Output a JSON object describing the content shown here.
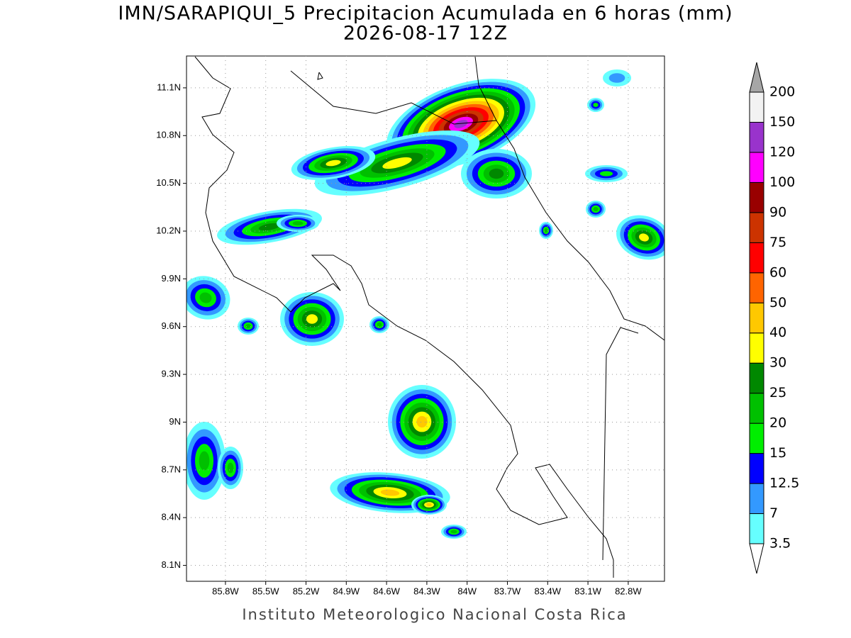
{
  "chart_data": {
    "type": "map",
    "title": "IMN/SARAPIQUI_5 Precipitacion Acumulada en 6 horas (mm)",
    "subtitle": "2026-08-17 12Z",
    "credit": "Instituto Meteorologico Nacional Costa Rica",
    "xlim": [
      -86.09,
      -82.53
    ],
    "ylim": [
      8.0,
      11.3
    ],
    "xticks": [
      {
        "value": -85.8,
        "label": "85.8W"
      },
      {
        "value": -85.5,
        "label": "85.5W"
      },
      {
        "value": -85.2,
        "label": "85.2W"
      },
      {
        "value": -84.9,
        "label": "84.9W"
      },
      {
        "value": -84.6,
        "label": "84.6W"
      },
      {
        "value": -84.3,
        "label": "84.3W"
      },
      {
        "value": -84.0,
        "label": "84W"
      },
      {
        "value": -83.7,
        "label": "83.7W"
      },
      {
        "value": -83.4,
        "label": "83.4W"
      },
      {
        "value": -83.1,
        "label": "83.1W"
      },
      {
        "value": -82.8,
        "label": "82.8W"
      }
    ],
    "yticks": [
      {
        "value": 8.1,
        "label": "8.1N"
      },
      {
        "value": 8.4,
        "label": "8.4N"
      },
      {
        "value": 8.7,
        "label": "8.7N"
      },
      {
        "value": 9.0,
        "label": "9N"
      },
      {
        "value": 9.3,
        "label": "9.3N"
      },
      {
        "value": 9.6,
        "label": "9.6N"
      },
      {
        "value": 9.9,
        "label": "9.9N"
      },
      {
        "value": 10.2,
        "label": "10.2N"
      },
      {
        "value": 10.5,
        "label": "10.5N"
      },
      {
        "value": 10.8,
        "label": "10.8N"
      },
      {
        "value": 11.1,
        "label": "11.1N"
      }
    ],
    "grid": true,
    "colorbar": {
      "levels": [
        3.5,
        7,
        12.5,
        15,
        20,
        25,
        30,
        40,
        50,
        60,
        75,
        90,
        100,
        120,
        150,
        200
      ],
      "colors": [
        "#66ffff",
        "#3399ff",
        "#0000ff",
        "#00ee00",
        "#00c000",
        "#008800",
        "#ffff00",
        "#ffc800",
        "#ff6400",
        "#ff0000",
        "#cc3300",
        "#990000",
        "#ff00ff",
        "#9933cc",
        "#f2f2f2"
      ],
      "over_color": "#a6a6a6",
      "under_color": "#ffffff"
    }
  }
}
